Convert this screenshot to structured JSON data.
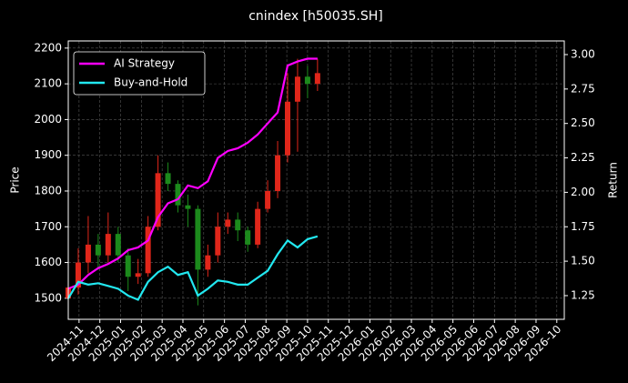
{
  "chart_data": {
    "type": "candlestick-returns",
    "title": "cnindex [h50035.SH]",
    "ylabel": "Price",
    "y2label": "Return",
    "xlim": [
      2024.79,
      2026.78
    ],
    "ylim": [
      1441,
      2220
    ],
    "y2lim": [
      1.078,
      3.099
    ],
    "xticks": [
      {
        "value": 2024.8333,
        "label": "2024-11"
      },
      {
        "value": 2024.9167,
        "label": "2024-12"
      },
      {
        "value": 2025.0,
        "label": "2025-01"
      },
      {
        "value": 2025.0833,
        "label": "2025-02"
      },
      {
        "value": 2025.1667,
        "label": "2025-03"
      },
      {
        "value": 2025.25,
        "label": "2025-04"
      },
      {
        "value": 2025.3333,
        "label": "2025-05"
      },
      {
        "value": 2025.4167,
        "label": "2025-06"
      },
      {
        "value": 2025.5,
        "label": "2025-07"
      },
      {
        "value": 2025.5833,
        "label": "2025-08"
      },
      {
        "value": 2025.6667,
        "label": "2025-09"
      },
      {
        "value": 2025.75,
        "label": "2025-10"
      },
      {
        "value": 2025.8333,
        "label": "2025-11"
      },
      {
        "value": 2025.9167,
        "label": "2025-12"
      },
      {
        "value": 2026.0,
        "label": "2026-01"
      },
      {
        "value": 2026.0833,
        "label": "2026-02"
      },
      {
        "value": 2026.1667,
        "label": "2026-03"
      },
      {
        "value": 2026.25,
        "label": "2026-04"
      },
      {
        "value": 2026.3333,
        "label": "2026-05"
      },
      {
        "value": 2026.4167,
        "label": "2026-06"
      },
      {
        "value": 2026.5,
        "label": "2026-07"
      },
      {
        "value": 2026.5833,
        "label": "2026-08"
      },
      {
        "value": 2026.6667,
        "label": "2026-09"
      },
      {
        "value": 2026.75,
        "label": "2026-10"
      }
    ],
    "yticks": [
      1500,
      1600,
      1700,
      1800,
      1900,
      2000,
      2100,
      2200
    ],
    "y2ticks": [
      1.25,
      {
        "value": 1.5,
        "label": "1.50"
      },
      1.75,
      {
        "value": 2.0,
        "label": "2.00"
      },
      2.25,
      {
        "value": 2.5,
        "label": "2.50"
      },
      2.75,
      {
        "value": 3.0,
        "label": "3.00"
      }
    ],
    "grid": true,
    "legend": "upper left",
    "up_color": "#e0261a",
    "down_color": "#1c8a1c",
    "x": [
      2024.79,
      2024.83,
      2024.87,
      2024.91,
      2024.95,
      2024.99,
      2025.03,
      2025.07,
      2025.11,
      2025.15,
      2025.19,
      2025.23,
      2025.27,
      2025.31,
      2025.35,
      2025.39,
      2025.43,
      2025.47,
      2025.51,
      2025.55,
      2025.59,
      2025.63,
      2025.67,
      2025.71,
      2025.75,
      2025.79
    ],
    "open": [
      1500,
      1530,
      1600,
      1650,
      1620,
      1680,
      1620,
      1560,
      1570,
      1700,
      1850,
      1820,
      1760,
      1750,
      1580,
      1620,
      1700,
      1720,
      1690,
      1650,
      1750,
      1800,
      1900,
      2050,
      2120,
      2100
    ],
    "close": [
      1530,
      1600,
      1650,
      1620,
      1680,
      1620,
      1560,
      1570,
      1700,
      1850,
      1820,
      1760,
      1750,
      1580,
      1620,
      1700,
      1720,
      1690,
      1650,
      1750,
      1800,
      1900,
      2050,
      2120,
      2100,
      2130
    ],
    "high": [
      1560,
      1640,
      1730,
      1680,
      1740,
      1700,
      1640,
      1610,
      1730,
      1900,
      1880,
      1830,
      1790,
      1760,
      1650,
      1740,
      1740,
      1740,
      1700,
      1770,
      1830,
      1940,
      2130,
      2170,
      2150,
      2170
    ],
    "low": [
      1470,
      1510,
      1570,
      1580,
      1600,
      1600,
      1520,
      1540,
      1560,
      1690,
      1800,
      1740,
      1700,
      1480,
      1560,
      1600,
      1680,
      1660,
      1630,
      1640,
      1740,
      1780,
      1880,
      1910,
      2060,
      2080
    ],
    "series": [
      {
        "name": "AI Strategy",
        "color": "#ff00ff",
        "axis": "y2",
        "values": [
          1.3,
          1.33,
          1.4,
          1.45,
          1.48,
          1.52,
          1.58,
          1.6,
          1.65,
          1.82,
          1.92,
          1.95,
          2.05,
          2.03,
          2.08,
          2.25,
          2.3,
          2.32,
          2.36,
          2.42,
          2.5,
          2.58,
          2.92,
          2.95,
          2.97,
          2.97
        ]
      },
      {
        "name": "Buy-and-Hold",
        "color": "#22e8f0",
        "axis": "y2",
        "values": [
          1.23,
          1.35,
          1.33,
          1.34,
          1.32,
          1.3,
          1.25,
          1.22,
          1.35,
          1.42,
          1.46,
          1.4,
          1.42,
          1.25,
          1.3,
          1.36,
          1.35,
          1.33,
          1.33,
          1.38,
          1.43,
          1.55,
          1.65,
          1.6,
          1.66,
          1.68
        ]
      }
    ]
  }
}
